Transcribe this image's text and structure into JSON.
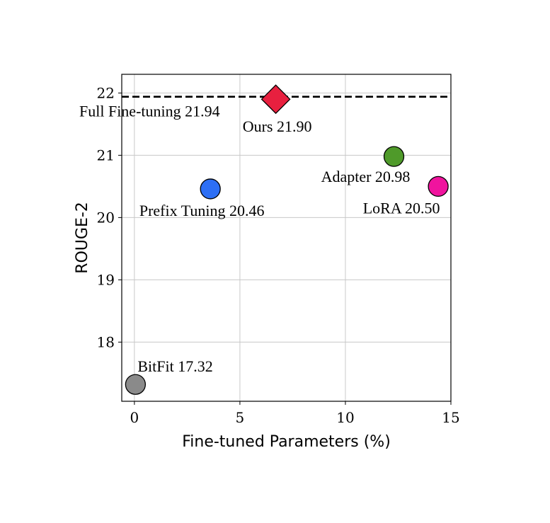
{
  "chart_data": {
    "type": "scatter",
    "title": "",
    "xlabel": "Fine-tuned Parameters (%)",
    "ylabel": "ROUGE-2",
    "xlim": [
      -0.6,
      15
    ],
    "ylim": [
      17.05,
      22.3
    ],
    "xticks": [
      0,
      5,
      10,
      15
    ],
    "yticks": [
      18,
      19,
      20,
      21,
      22
    ],
    "grid": true,
    "points": [
      {
        "name": "Ours",
        "label": "Ours 21.90",
        "x": 6.7,
        "y": 21.9,
        "color": "#e8203f",
        "marker": "diamond"
      },
      {
        "name": "Adapter",
        "label": "Adapter 20.98",
        "x": 12.3,
        "y": 20.98,
        "color": "#4f9a2a",
        "marker": "circle"
      },
      {
        "name": "LoRA",
        "label": "LoRA 20.50",
        "x": 14.4,
        "y": 20.5,
        "color": "#f0149e",
        "marker": "circle"
      },
      {
        "name": "Prefix Tuning",
        "label": "Prefix Tuning 20.46",
        "x": 3.6,
        "y": 20.46,
        "color": "#2d6ff5",
        "marker": "circle"
      },
      {
        "name": "BitFit",
        "label": "BitFit 17.32",
        "x": 0.05,
        "y": 17.32,
        "color": "#8a8a8a",
        "marker": "circle"
      }
    ],
    "reference_lines": [
      {
        "label": "Full Fine-tuning 21.94",
        "y": 21.94,
        "style": "dashed",
        "color": "#000000"
      }
    ]
  }
}
